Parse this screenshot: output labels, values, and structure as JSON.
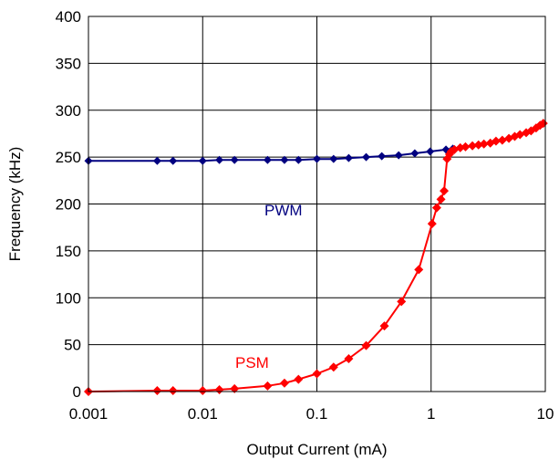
{
  "chart_data": {
    "type": "line",
    "title": "",
    "xlabel": "Output Current (mA)",
    "ylabel": "Frequency (kHz)",
    "x_scale": "log",
    "xlim": [
      0.001,
      10
    ],
    "ylim": [
      0,
      400
    ],
    "x_ticks": [
      "0.001",
      "0.01",
      "0.1",
      "1",
      "10"
    ],
    "y_ticks": [
      "0",
      "50",
      "100",
      "150",
      "200",
      "250",
      "300",
      "350",
      "400"
    ],
    "grid": true,
    "legend": "none",
    "annotations": [
      {
        "text": "PWM",
        "color": "#000080"
      },
      {
        "text": "PSM",
        "color": "#ff0000"
      }
    ],
    "series": [
      {
        "name": "PWM",
        "color": "#000080",
        "marker": "diamond",
        "x": [
          0.001,
          0.004,
          0.0055,
          0.01,
          0.014,
          0.019,
          0.037,
          0.052,
          0.069,
          0.1,
          0.14,
          0.19,
          0.27,
          0.37,
          0.52,
          0.72,
          0.98,
          1.35,
          1.55
        ],
        "y": [
          246,
          246,
          246,
          246,
          247,
          247,
          247,
          247,
          247,
          248,
          248,
          249,
          250,
          251,
          252,
          254,
          256,
          258,
          259
        ]
      },
      {
        "name": "PSM",
        "color": "#ff0000",
        "marker": "diamond",
        "x": [
          0.001,
          0.004,
          0.0055,
          0.01,
          0.014,
          0.019,
          0.037,
          0.052,
          0.069,
          0.1,
          0.14,
          0.19,
          0.27,
          0.39,
          0.55,
          0.78,
          1.02,
          1.12,
          1.22,
          1.3,
          1.38,
          1.45,
          1.5,
          1.6,
          1.8,
          2.0,
          2.3,
          2.6,
          2.9,
          3.3,
          3.7,
          4.2,
          4.8,
          5.4,
          6.0,
          6.8,
          7.5,
          8.3,
          9.0,
          9.6
        ],
        "y": [
          0,
          1,
          1,
          1,
          2,
          3,
          6,
          9,
          13,
          19,
          26,
          35,
          49,
          70,
          96,
          130,
          179,
          196,
          205,
          214,
          248,
          253,
          256,
          258,
          260,
          261,
          262,
          263,
          264,
          265,
          267,
          268,
          270,
          272,
          274,
          276,
          278,
          281,
          284,
          286
        ]
      }
    ]
  }
}
